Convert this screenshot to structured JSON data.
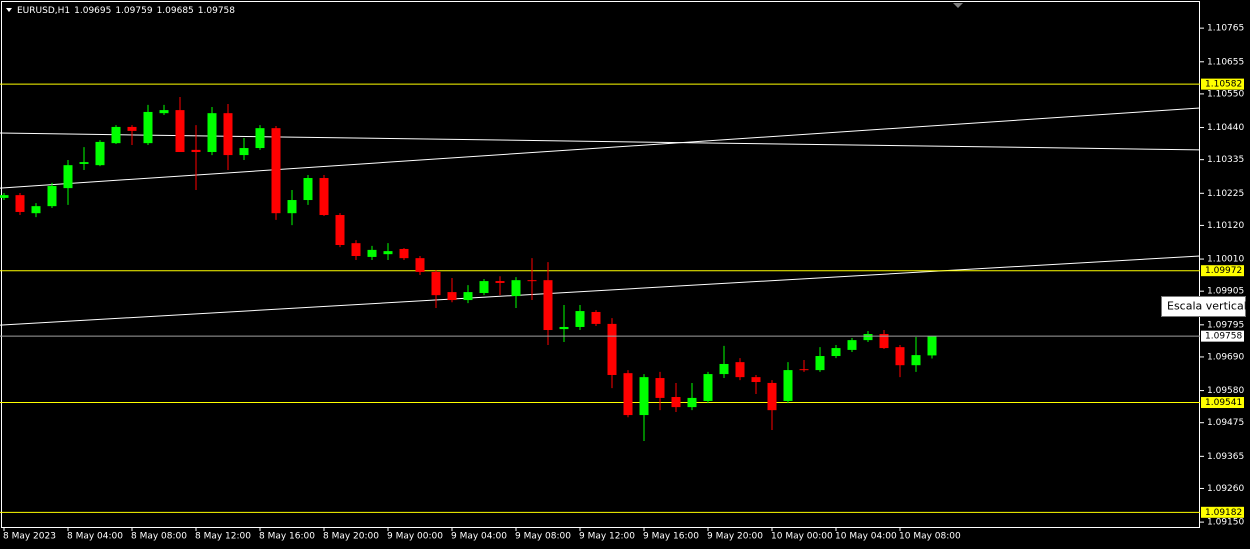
{
  "chart_data": {
    "type": "candlestick",
    "symbol": "EURUSD,H1",
    "tooltip": "Escala vertical",
    "up_color": "#00ff00",
    "down_color": "#ff0000",
    "categories": [
      "8 May 2023",
      null,
      null,
      null,
      "8 May 04:00",
      null,
      null,
      null,
      "8 May 08:00",
      null,
      null,
      null,
      "8 May 12:00",
      null,
      null,
      null,
      "8 May 16:00",
      null,
      null,
      null,
      "8 May 20:00",
      null,
      null,
      null,
      "9 May 00:00",
      null,
      null,
      null,
      "9 May 04:00",
      null,
      null,
      null,
      "9 May 08:00",
      null,
      null,
      null,
      "9 May 12:00",
      null,
      null,
      null,
      "9 May 16:00",
      null,
      null,
      null,
      "9 May 20:00",
      null,
      null,
      null,
      "10 May 00:00",
      null,
      null,
      null,
      "10 May 04:00",
      null,
      null,
      null,
      "10 May 08:00",
      null,
      null
    ],
    "open": [
      1.1021,
      1.10219,
      1.1016,
      1.10183,
      1.10242,
      1.10321,
      1.10317,
      1.10389,
      1.10442,
      1.10389,
      1.10487,
      1.10497,
      1.10367,
      1.1036,
      1.10487,
      1.1035,
      1.10373,
      1.10438,
      1.1016,
      1.10203,
      1.10275,
      1.10154,
      1.10062,
      1.10017,
      1.10026,
      1.10043,
      1.10013,
      1.09968,
      1.09902,
      1.09876,
      1.09899,
      1.09938,
      1.09889,
      1.09941,
      1.09941,
      1.09781,
      1.09788,
      1.09837,
      1.09798,
      1.09637,
      1.095,
      1.09621,
      1.09559,
      1.09526,
      1.09546,
      1.09634,
      1.09673,
      1.09624,
      1.09605,
      1.09546,
      1.0965,
      1.09647,
      1.09693,
      1.09713,
      1.09745,
      1.09765,
      1.09722,
      1.09663,
      1.09695
    ],
    "high": [
      1.10226,
      1.10226,
      1.10193,
      1.10259,
      1.10334,
      1.10376,
      1.10399,
      1.10448,
      1.10448,
      1.10514,
      1.10514,
      1.1054,
      1.10448,
      1.10507,
      1.10517,
      1.10406,
      1.10448,
      1.10445,
      1.10236,
      1.10285,
      1.10285,
      1.1016,
      1.10072,
      1.10053,
      1.10062,
      1.10046,
      1.1002,
      1.09974,
      1.09948,
      1.09925,
      1.09945,
      1.09954,
      1.09951,
      1.10013,
      1.1,
      1.0986,
      1.0986,
      1.09843,
      1.09817,
      1.09647,
      1.09634,
      1.09641,
      1.09605,
      1.09605,
      1.09641,
      1.09726,
      1.09686,
      1.09631,
      1.09614,
      1.09673,
      1.0968,
      1.09722,
      1.09729,
      1.09752,
      1.09775,
      1.09778,
      1.09729,
      1.09755,
      1.09759
    ],
    "low": [
      1.10203,
      1.10154,
      1.10147,
      1.10177,
      1.10187,
      1.10301,
      1.10314,
      1.10386,
      1.10383,
      1.10383,
      1.10481,
      1.1036,
      1.10236,
      1.1035,
      1.10301,
      1.10334,
      1.10367,
      1.10138,
      1.10121,
      1.10187,
      1.10151,
      1.10049,
      1.10007,
      1.10007,
      1.10007,
      1.10007,
      1.09958,
      1.0985,
      1.09869,
      1.09866,
      1.09892,
      1.09892,
      1.0985,
      1.09876,
      1.09729,
      1.09739,
      1.09778,
      1.09791,
      1.09588,
      1.09493,
      1.09415,
      1.09516,
      1.0951,
      1.09516,
      1.09539,
      1.09621,
      1.09614,
      1.09569,
      1.09451,
      1.09539,
      1.09641,
      1.09641,
      1.09686,
      1.09706,
      1.09739,
      1.09716,
      1.09624,
      1.09641,
      1.09685
    ],
    "close": [
      1.10219,
      1.10164,
      1.10183,
      1.10249,
      1.10317,
      1.10327,
      1.10393,
      1.10442,
      1.10429,
      1.10491,
      1.10497,
      1.1036,
      1.1036,
      1.10487,
      1.1035,
      1.10373,
      1.10438,
      1.1016,
      1.10203,
      1.10275,
      1.10154,
      1.10056,
      1.1002,
      1.1004,
      1.10036,
      1.10013,
      1.09968,
      1.09892,
      1.09876,
      1.09902,
      1.09938,
      1.09932,
      1.09941,
      1.09938,
      1.09778,
      1.09788,
      1.0984,
      1.09798,
      1.09631,
      1.095,
      1.09624,
      1.09556,
      1.09526,
      1.09556,
      1.09634,
      1.09667,
      1.09624,
      1.09608,
      1.09516,
      1.09647,
      1.09647,
      1.09693,
      1.09719,
      1.09745,
      1.09765,
      1.09719,
      1.09663,
      1.09696,
      1.09758
    ],
    "ylim": [
      1.09134,
      1.10857
    ],
    "yticks": [
      1.10765,
      1.10655,
      {
        "value": 1.1055,
        "label": "1.10550"
      },
      {
        "value": 1.1044,
        "label": "1.10440"
      },
      1.10335,
      1.10225,
      {
        "value": 1.1012,
        "label": "1.10120"
      },
      {
        "value": 1.1001,
        "label": "1.10010"
      },
      1.09905,
      1.09795,
      {
        "value": 1.0969,
        "label": "1.09690"
      },
      {
        "value": 1.0958,
        "label": "1.09580"
      },
      1.09475,
      1.09365,
      {
        "value": 1.0926,
        "label": "1.09260"
      },
      {
        "value": 1.0915,
        "label": "1.09150"
      }
    ],
    "levels": [
      {
        "value": 1.10582,
        "color": "#ffff00"
      },
      {
        "value": 1.09972,
        "color": "#ffff00"
      },
      {
        "value": 1.09541,
        "color": "#ffff00"
      },
      {
        "value": 1.09182,
        "color": "#ffff00"
      }
    ],
    "bid_line_color": "#a0a0a0",
    "trendlines": [
      {
        "values": [
          1.10422,
          1.10367
        ],
        "color": "#ffffff"
      },
      {
        "values": [
          1.10242,
          1.10504
        ],
        "color": "#ffffff"
      },
      {
        "values": [
          1.09794,
          1.1002
        ],
        "color": "#ffffff"
      }
    ]
  }
}
